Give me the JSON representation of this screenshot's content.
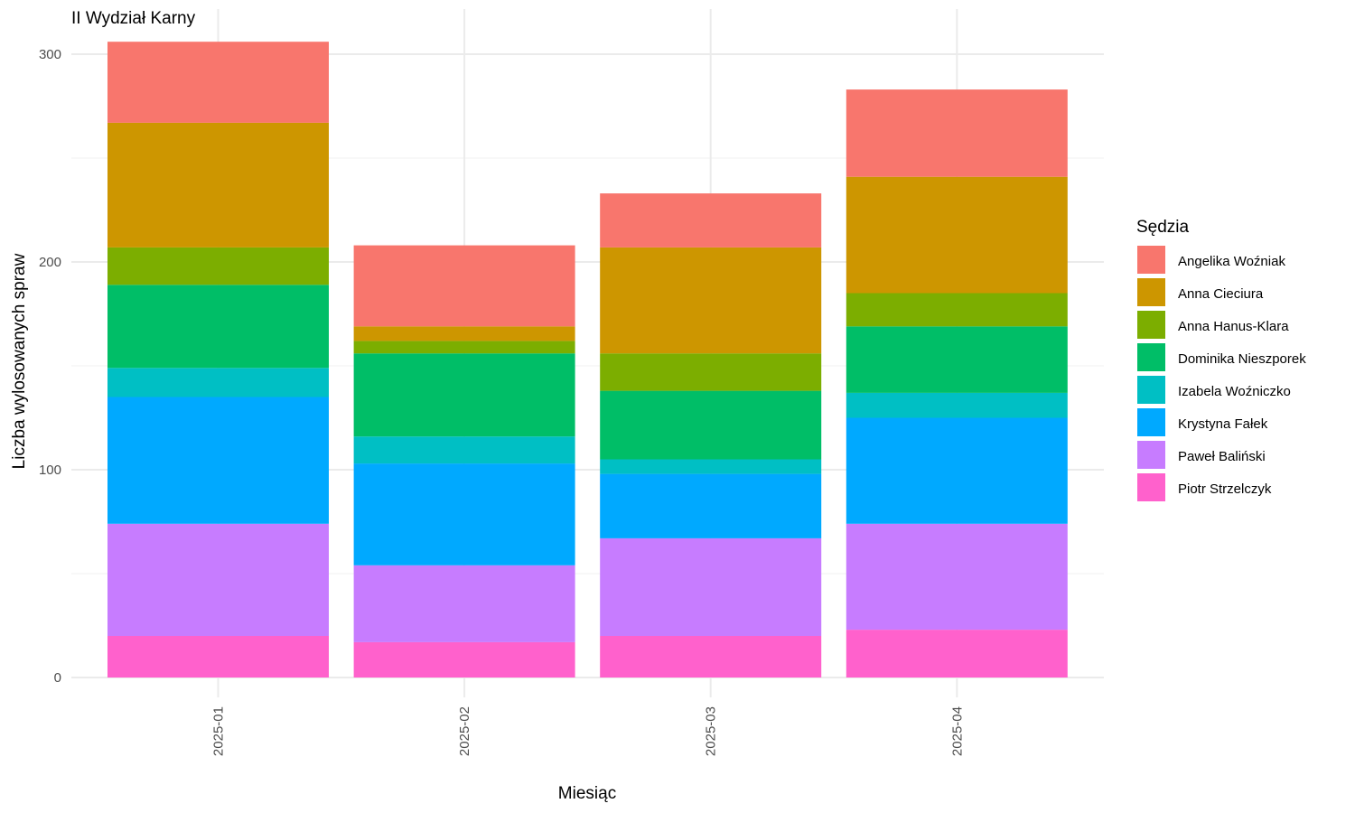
{
  "chart_data": {
    "type": "bar",
    "stacked": true,
    "title": "II Wydział Karny",
    "xlabel": "Miesiąc",
    "ylabel": "Liczba wylosowanych spraw",
    "categories": [
      "2025-01",
      "2025-02",
      "2025-03",
      "2025-04"
    ],
    "ylim": [
      0,
      306
    ],
    "yticks": [
      0,
      100,
      200,
      300
    ],
    "grid": true,
    "legend": {
      "title": "Sędzia",
      "position": "right"
    },
    "series": [
      {
        "name": "Piotr Strzelczyk",
        "color": "#FF61CC",
        "values": [
          20,
          17,
          20,
          23
        ]
      },
      {
        "name": "Paweł Baliński",
        "color": "#C77CFF",
        "values": [
          54,
          37,
          47,
          51
        ]
      },
      {
        "name": "Krystyna Fałek",
        "color": "#00A9FF",
        "values": [
          61,
          49,
          31,
          51
        ]
      },
      {
        "name": "Izabela Woźniczko",
        "color": "#00BFC4",
        "values": [
          14,
          13,
          7,
          12
        ]
      },
      {
        "name": "Dominika Nieszporek",
        "color": "#00BE67",
        "values": [
          40,
          40,
          33,
          32
        ]
      },
      {
        "name": "Anna Hanus-Klara",
        "color": "#7CAE00",
        "values": [
          18,
          6,
          18,
          16
        ]
      },
      {
        "name": "Anna Cieciura",
        "color": "#CD9600",
        "values": [
          60,
          7,
          51,
          56
        ]
      },
      {
        "name": "Angelika Woźniak",
        "color": "#F8766D",
        "values": [
          39,
          39,
          26,
          42
        ]
      }
    ]
  }
}
